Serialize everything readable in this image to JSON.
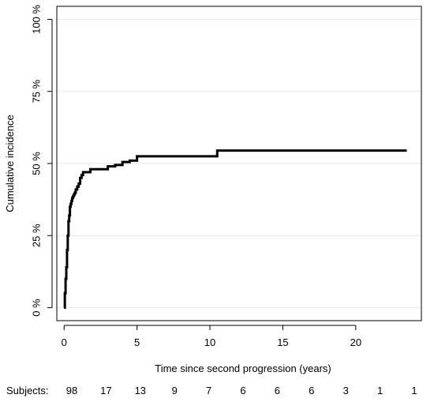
{
  "chart_data": {
    "type": "line",
    "title": "",
    "xlabel": "Time since second progression (years)",
    "ylabel": "Cumulative incidence",
    "xlim": [
      -0.5,
      24.5
    ],
    "ylim": [
      -0.045,
      1.045
    ],
    "x_ticks": [
      0,
      5,
      10,
      15,
      20
    ],
    "x_tick_labels": [
      "0",
      "5",
      "10",
      "15",
      "20"
    ],
    "y_ticks": [
      0,
      0.25,
      0.5,
      0.75,
      1.0
    ],
    "y_tick_labels": [
      "0 %",
      "25 %",
      "50 %",
      "75 %",
      "100 %"
    ],
    "grid": "horizontal",
    "series": [
      {
        "color": "#000000",
        "step": true,
        "x": [
          0,
          0.05,
          0.1,
          0.15,
          0.2,
          0.25,
          0.3,
          0.35,
          0.4,
          0.45,
          0.5,
          0.55,
          0.6,
          0.65,
          0.7,
          0.75,
          0.8,
          0.9,
          1.0,
          1.1,
          1.2,
          1.3,
          1.4,
          1.5,
          1.7,
          1.8,
          2.0,
          2.5,
          3.0,
          3.5,
          4.0,
          4.5,
          5.0,
          10.4,
          10.5,
          23.5
        ],
        "y": [
          0,
          0.05,
          0.1,
          0.14,
          0.2,
          0.25,
          0.3,
          0.32,
          0.35,
          0.36,
          0.37,
          0.38,
          0.385,
          0.39,
          0.395,
          0.4,
          0.41,
          0.42,
          0.43,
          0.45,
          0.46,
          0.47,
          0.47,
          0.47,
          0.47,
          0.48,
          0.48,
          0.48,
          0.49,
          0.495,
          0.505,
          0.51,
          0.525,
          0.525,
          0.545,
          0.545
        ]
      }
    ],
    "risk_table": {
      "label": "Subjects:",
      "counts": [
        "98",
        "17",
        "13",
        "9",
        "7",
        "6",
        "6",
        "6",
        "3",
        "1",
        "1"
      ]
    }
  }
}
